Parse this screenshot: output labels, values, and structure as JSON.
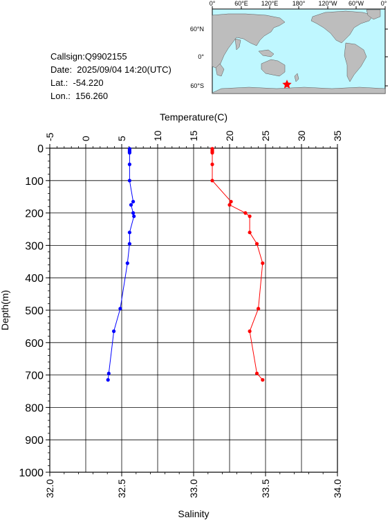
{
  "info": {
    "callsign": "Callsign:Q9902155",
    "date": "Date:  2025/09/04 14:20(UTC)",
    "lat": "Lat.:  -54.220",
    "lon": "Lon.:  156.260"
  },
  "map": {
    "top_labels": [
      "0°",
      "60°E",
      "120°E",
      "180°",
      "120°W",
      "60°W",
      "0°"
    ],
    "right_labels": [
      "60°N",
      "0°",
      "60°S"
    ],
    "ocean_color": "#bff7ff",
    "land_color": "#bdbdbd",
    "marker_color": "#ff0000",
    "marker_icon": "star-icon"
  },
  "chart_data": {
    "type": "line",
    "temperature_axis": {
      "label": "Temperature(C)",
      "range": [
        -5,
        35
      ],
      "ticks": [
        "-5",
        "0",
        "5",
        "10",
        "15",
        "20",
        "25",
        "30",
        "35"
      ]
    },
    "salinity_axis": {
      "label": "Salinity",
      "range": [
        32.0,
        34.0
      ],
      "ticks": [
        "32.0",
        "32.5",
        "33.0",
        "33.5",
        "34.0"
      ]
    },
    "depth_axis": {
      "label": "Depth(m)",
      "range": [
        0,
        1000
      ],
      "ticks": [
        "0",
        "100",
        "200",
        "300",
        "400",
        "500",
        "600",
        "700",
        "800",
        "900",
        "1000"
      ]
    },
    "series": [
      {
        "variable": "temperature",
        "color": "#0000ff",
        "depth": [
          2,
          6,
          10,
          14,
          50,
          100,
          165,
          175,
          200,
          210,
          260,
          295,
          355,
          495,
          565,
          695,
          715
        ],
        "values": [
          6.1,
          6.1,
          6.1,
          6.1,
          6.1,
          6.1,
          6.6,
          6.3,
          6.6,
          6.7,
          6.1,
          6.1,
          5.8,
          4.8,
          3.9,
          3.2,
          3.1
        ]
      },
      {
        "variable": "salinity",
        "color": "#ff0000",
        "depth": [
          2,
          6,
          10,
          14,
          50,
          100,
          165,
          175,
          200,
          210,
          260,
          295,
          355,
          495,
          565,
          695,
          715
        ],
        "values": [
          33.13,
          33.13,
          33.13,
          33.13,
          33.13,
          33.13,
          33.26,
          33.25,
          33.36,
          33.39,
          33.39,
          33.44,
          33.48,
          33.45,
          33.39,
          33.44,
          33.48
        ]
      }
    ],
    "grid": true
  }
}
